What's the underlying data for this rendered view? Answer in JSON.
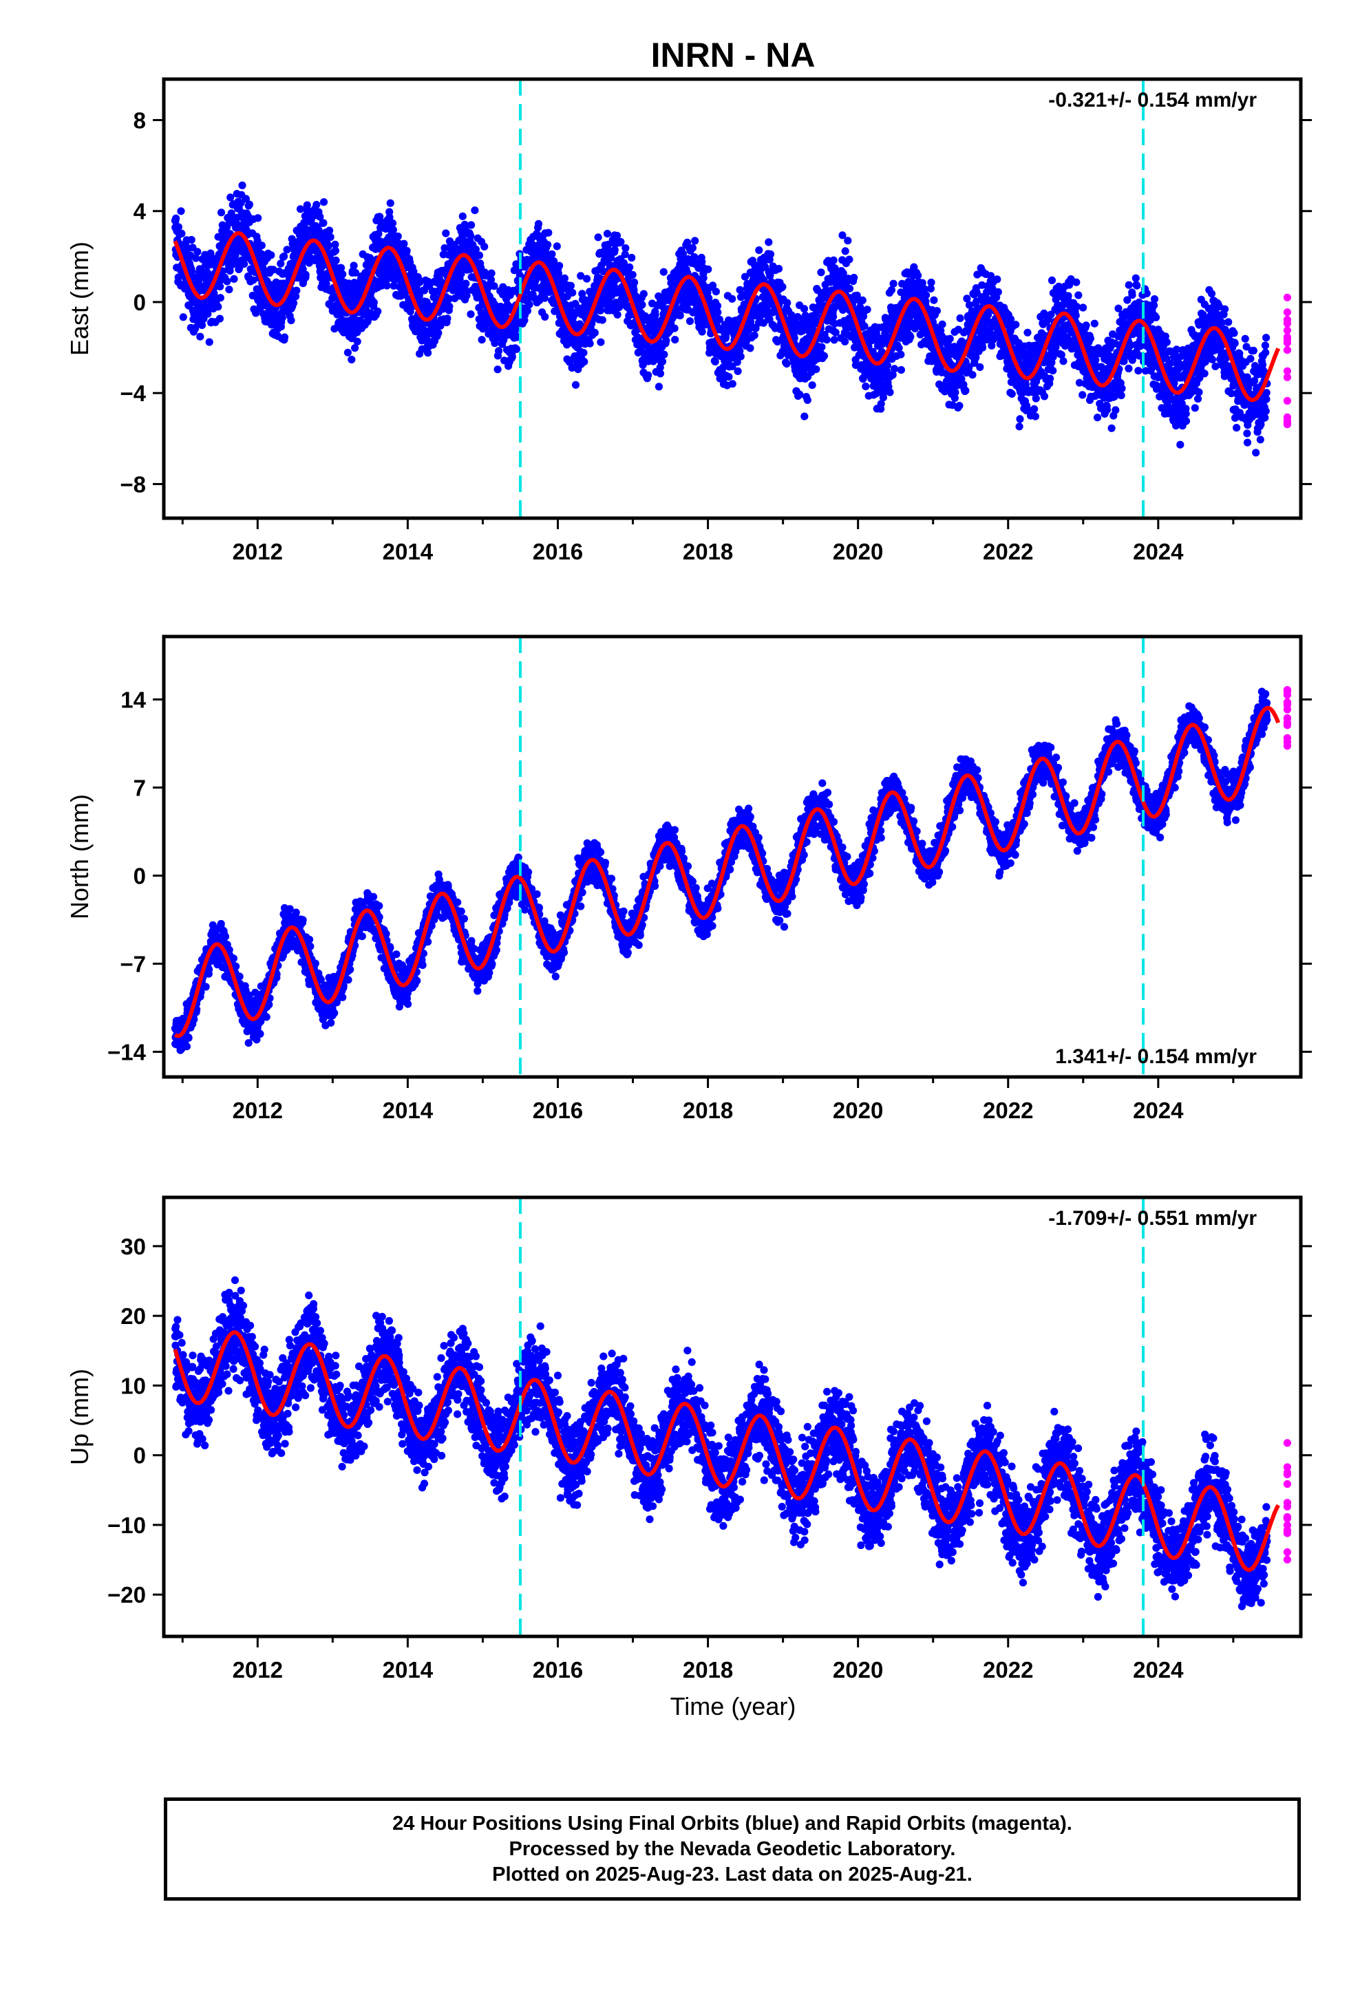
{
  "title": "INRN - NA",
  "xlabel": "Time (year)",
  "colors": {
    "final": "#0000ff",
    "rapid": "#ff00ff",
    "model": "#ff0000",
    "break": "#00e5e5",
    "frame": "#000000"
  },
  "footer": {
    "line1": "24 Hour Positions Using Final Orbits (blue) and Rapid Orbits (magenta).",
    "line2": "Processed by the Nevada Geodetic Laboratory.",
    "line3": "Plotted on 2025-Aug-23. Last data on 2025-Aug-21."
  },
  "chart_data": [
    {
      "type": "scatter",
      "name": "east",
      "ylabel": "East (mm)",
      "rate_label": "-0.321+/- 0.154 mm/yr",
      "xlim": [
        2010.75,
        2025.9
      ],
      "ylim": [
        -9.5,
        9.8
      ],
      "xticks": [
        2012,
        2014,
        2016,
        2018,
        2020,
        2022,
        2024
      ],
      "yticks": [
        8,
        4,
        0,
        -4,
        -8
      ],
      "ytick_labels": [
        "8",
        "4",
        "0",
        "−4",
        "−8"
      ],
      "breaks": [
        2015.5,
        2023.8
      ],
      "model": {
        "start": 2010.9,
        "end": 2025.6,
        "offset0": 1.8,
        "rate": -0.321,
        "amp": 1.5,
        "phase": 2011.75,
        "scatter": 1.2
      },
      "rapid_window": [
        2025.45,
        2025.62
      ]
    },
    {
      "type": "scatter",
      "name": "north",
      "ylabel": "North (mm)",
      "rate_label": "1.341+/- 0.154 mm/yr",
      "xlim": [
        2010.75,
        2025.9
      ],
      "ylim": [
        -16,
        19
      ],
      "xticks": [
        2012,
        2014,
        2016,
        2018,
        2020,
        2022,
        2024
      ],
      "yticks": [
        14,
        7,
        0,
        -7,
        -14
      ],
      "ytick_labels": [
        "14",
        "7",
        "0",
        "−7",
        "−14"
      ],
      "breaks": [
        2015.5,
        2023.8
      ],
      "model": {
        "start": 2010.9,
        "end": 2025.6,
        "offset0": -9.5,
        "rate": 1.341,
        "amp": 3.3,
        "phase": 2011.45,
        "scatter": 1.1
      },
      "rapid_window": [
        2025.45,
        2025.62
      ]
    },
    {
      "type": "scatter",
      "name": "up",
      "ylabel": "Up (mm)",
      "rate_label": "-1.709+/- 0.551 mm/yr",
      "xlim": [
        2010.75,
        2025.9
      ],
      "ylim": [
        -26,
        37
      ],
      "xticks": [
        2012,
        2014,
        2016,
        2018,
        2020,
        2022,
        2024
      ],
      "yticks": [
        30,
        20,
        10,
        0,
        -10,
        -20
      ],
      "ytick_labels": [
        "30",
        "20",
        "10",
        "0",
        "−10",
        "−20"
      ],
      "breaks": [
        2015.5,
        2023.8
      ],
      "model": {
        "start": 2010.9,
        "end": 2025.6,
        "offset0": 13.5,
        "rate": -1.709,
        "amp": 5.5,
        "phase": 2011.7,
        "scatter": 4.0
      },
      "rapid_window": [
        2025.45,
        2025.62
      ]
    }
  ]
}
